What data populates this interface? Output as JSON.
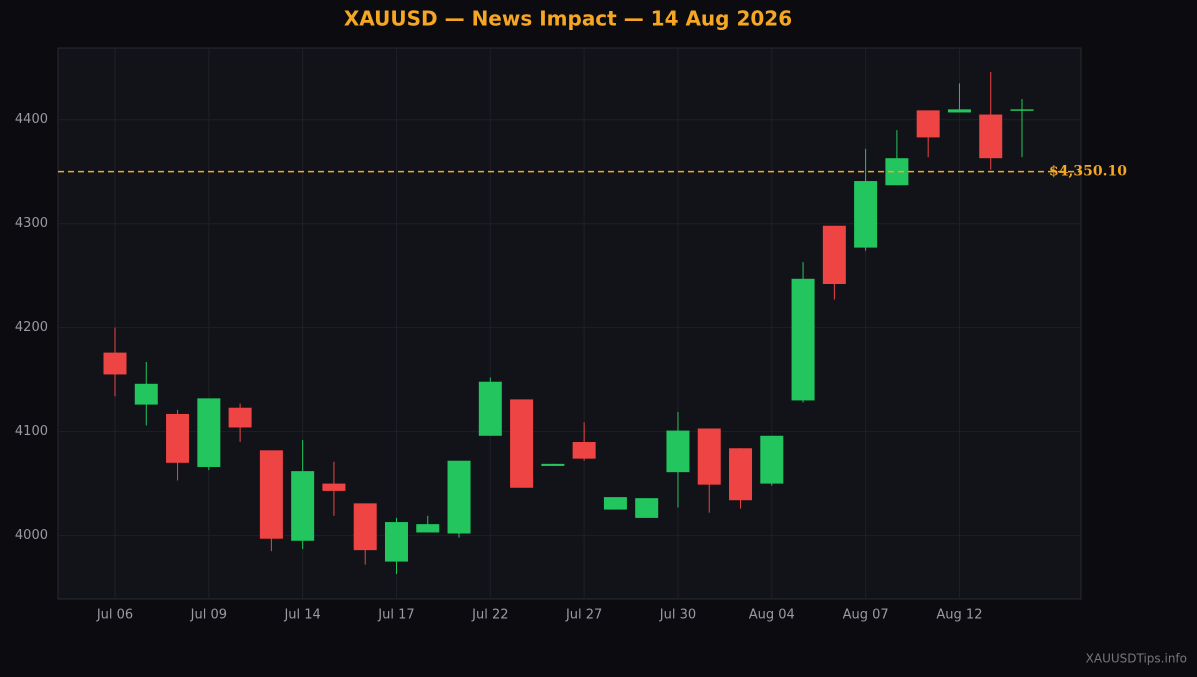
{
  "chart_data": {
    "type": "candlestick",
    "title": "XAUUSD — News Impact — 14 Aug 2026",
    "categories": [
      "Jul 06",
      null,
      null,
      "Jul 09",
      null,
      null,
      "Jul 14",
      null,
      null,
      "Jul 17",
      null,
      null,
      "Jul 22",
      null,
      null,
      "Jul 27",
      null,
      null,
      "Jul 30",
      null,
      null,
      "Aug 04",
      null,
      null,
      "Aug 07",
      null,
      null,
      "Aug 12",
      null,
      null
    ],
    "open": [
      4176,
      4126,
      4117,
      4066,
      4123,
      4082,
      3995,
      4050,
      4031,
      3975,
      4003,
      4002,
      4096,
      4131,
      4067,
      4090,
      4025,
      4017,
      4061,
      4103,
      4084,
      4050,
      4130,
      4298,
      4277,
      4337,
      4409,
      4407,
      4405,
      4409
    ],
    "high": [
      4200,
      4167,
      4121,
      4132,
      4127,
      4082,
      4092,
      4071,
      4031,
      4017,
      4019,
      4072,
      4152,
      4131,
      4069,
      4109,
      4037,
      4036,
      4119,
      4103,
      4084,
      4096,
      4263,
      4298,
      4372,
      4390,
      4409,
      4435,
      4446,
      4420
    ],
    "low": [
      4134,
      4106,
      4053,
      4063,
      4090,
      3985,
      3987,
      4019,
      3972,
      3963,
      4003,
      3998,
      4096,
      4046,
      4067,
      4072,
      4025,
      4017,
      4027,
      4022,
      4026,
      4048,
      4128,
      4227,
      4274,
      4337,
      4364,
      4407,
      4352,
      4364
    ],
    "close": [
      4155,
      4146,
      4070,
      4132,
      4104,
      3997,
      4062,
      4043,
      3986,
      4013,
      4011,
      4072,
      4148,
      4046,
      4069,
      4074,
      4037,
      4036,
      4101,
      4049,
      4034,
      4096,
      4247,
      4242,
      4341,
      4363,
      4383,
      4410,
      4363,
      4410
    ],
    "up_color": "#22c55e",
    "down_color": "#ef4444",
    "ylim": [
      3939,
      4469
    ],
    "yticks": [
      4000,
      4100,
      4200,
      4300,
      4400
    ],
    "grid": true,
    "reference_line": {
      "value": 4350.1,
      "label": "$4,350.10"
    },
    "reference_color": "#f5a623"
  },
  "footer": "XAUUSDTips.info"
}
